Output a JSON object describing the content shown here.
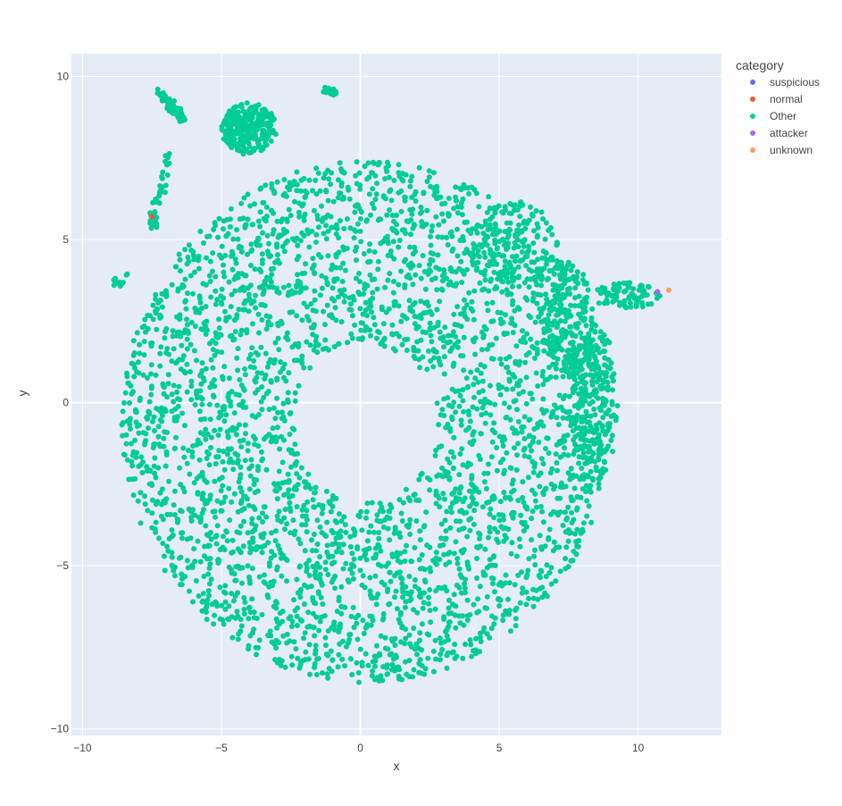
{
  "chart_data": {
    "type": "scatter",
    "title": "",
    "xlabel": "x",
    "ylabel": "y",
    "xlim": [
      -10.4,
      13.0
    ],
    "ylim": [
      -10.2,
      10.7
    ],
    "x_ticks": [
      -10,
      -5,
      0,
      5,
      10
    ],
    "y_ticks": [
      -10,
      -5,
      0,
      5,
      10
    ],
    "grid": true,
    "legend": {
      "title": "category",
      "placement": "top-right",
      "items": [
        {
          "name": "suspicious",
          "color": "#636efa"
        },
        {
          "name": "normal",
          "color": "#ef553b"
        },
        {
          "name": "Other",
          "color": "#00cc96"
        },
        {
          "name": "attacker",
          "color": "#ab63fa"
        },
        {
          "name": "unknown",
          "color": "#ffa15a"
        }
      ]
    },
    "series": [
      {
        "name": "Other",
        "color": "#00cc96",
        "clusters": [
          {
            "shape": "ring",
            "cx": 0.2,
            "cy": -0.6,
            "rx_out": 8.8,
            "ry_out": 8.0,
            "rx_in": 2.6,
            "ry_in": 2.4,
            "count": 3400
          },
          {
            "shape": "blob",
            "cx": -4.0,
            "cy": 8.4,
            "rx": 1.0,
            "ry": 0.8,
            "count": 260
          },
          {
            "shape": "blob",
            "cx": 5.5,
            "cy": 4.8,
            "rx": 1.6,
            "ry": 1.4,
            "count": 150
          },
          {
            "shape": "blob",
            "cx": 7.4,
            "cy": 2.6,
            "rx": 1.0,
            "ry": 1.8,
            "count": 180
          },
          {
            "shape": "blob",
            "cx": 8.4,
            "cy": 0.0,
            "rx": 0.9,
            "ry": 2.4,
            "count": 200
          },
          {
            "shape": "blob",
            "cx": 9.6,
            "cy": 3.3,
            "rx": 1.3,
            "ry": 0.4,
            "count": 80
          },
          {
            "shape": "arc",
            "points": [
              [
                -7.2,
                9.5
              ],
              [
                -6.8,
                9.1
              ],
              [
                -6.4,
                8.7
              ]
            ],
            "spread": 0.15,
            "count": 70
          },
          {
            "shape": "arc",
            "points": [
              [
                -6.9,
                7.6
              ],
              [
                -7.1,
                6.6
              ],
              [
                -7.5,
                5.8
              ],
              [
                -7.4,
                5.4
              ]
            ],
            "spread": 0.12,
            "count": 40
          },
          {
            "shape": "arc",
            "points": [
              [
                -1.3,
                9.6
              ],
              [
                -0.9,
                9.5
              ]
            ],
            "spread": 0.08,
            "count": 20
          },
          {
            "shape": "arc",
            "points": [
              [
                -8.4,
                4.0
              ],
              [
                -8.7,
                3.6
              ],
              [
                -9.0,
                3.8
              ]
            ],
            "spread": 0.12,
            "count": 12
          }
        ]
      },
      {
        "name": "normal",
        "color": "#ef553b",
        "points": [
          [
            -7.5,
            5.7
          ]
        ]
      },
      {
        "name": "attacker",
        "color": "#ab63fa",
        "points": [
          [
            10.7,
            3.4
          ]
        ]
      },
      {
        "name": "unknown",
        "color": "#ffa15a",
        "points": [
          [
            11.1,
            3.45
          ]
        ]
      },
      {
        "name": "suspicious",
        "color": "#636efa",
        "points": []
      }
    ]
  }
}
